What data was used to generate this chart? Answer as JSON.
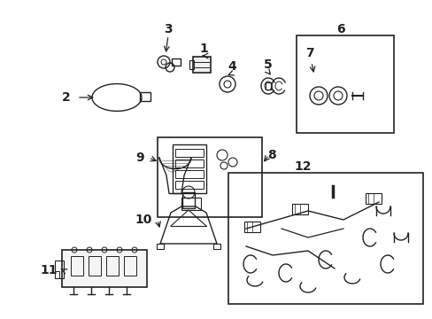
{
  "background_color": "#ffffff",
  "line_color": "#222222",
  "fig_width": 4.89,
  "fig_height": 3.6,
  "dpi": 100
}
